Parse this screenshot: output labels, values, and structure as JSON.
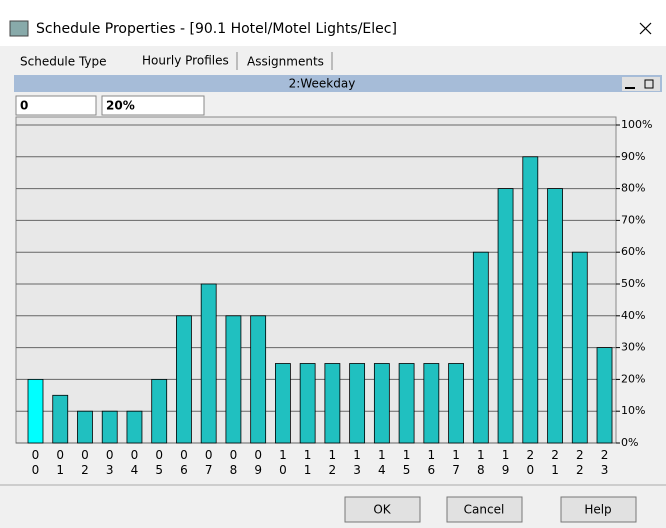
{
  "window": {
    "title": "Schedule Properties - [90.1 Hotel/Motel Lights/Elec]",
    "tabs": [
      "Schedule Type",
      "Hourly Profiles",
      "Assignments"
    ],
    "buttons": [
      "OK",
      "Cancel",
      "Help"
    ]
  },
  "panel": {
    "header": "2:Weekday",
    "selected_hour": "0",
    "selected_value": "20%"
  },
  "chart_data": {
    "type": "bar",
    "categories": [
      "00",
      "01",
      "02",
      "03",
      "04",
      "05",
      "06",
      "07",
      "08",
      "09",
      "10",
      "11",
      "12",
      "13",
      "14",
      "15",
      "16",
      "17",
      "18",
      "19",
      "20",
      "21",
      "22",
      "23"
    ],
    "values": [
      20,
      15,
      10,
      10,
      10,
      20,
      40,
      50,
      40,
      40,
      25,
      25,
      25,
      25,
      25,
      25,
      25,
      25,
      60,
      80,
      90,
      80,
      60,
      30
    ],
    "color": "#20c0c0",
    "highlight": {
      "index": 0,
      "color": "#00ffff"
    },
    "ylim": [
      0,
      100
    ],
    "yticks": [
      {
        "value": 0,
        "label": "0%"
      },
      {
        "value": 10,
        "label": "10%"
      },
      {
        "value": 20,
        "label": "20%"
      },
      {
        "value": 30,
        "label": "30%"
      },
      {
        "value": 40,
        "label": "40%"
      },
      {
        "value": 50,
        "label": "50%"
      },
      {
        "value": 60,
        "label": "60%"
      },
      {
        "value": 70,
        "label": "70%"
      },
      {
        "value": 80,
        "label": "80%"
      },
      {
        "value": 90,
        "label": "90%"
      },
      {
        "value": 100,
        "label": "100%"
      }
    ],
    "grid": true
  }
}
